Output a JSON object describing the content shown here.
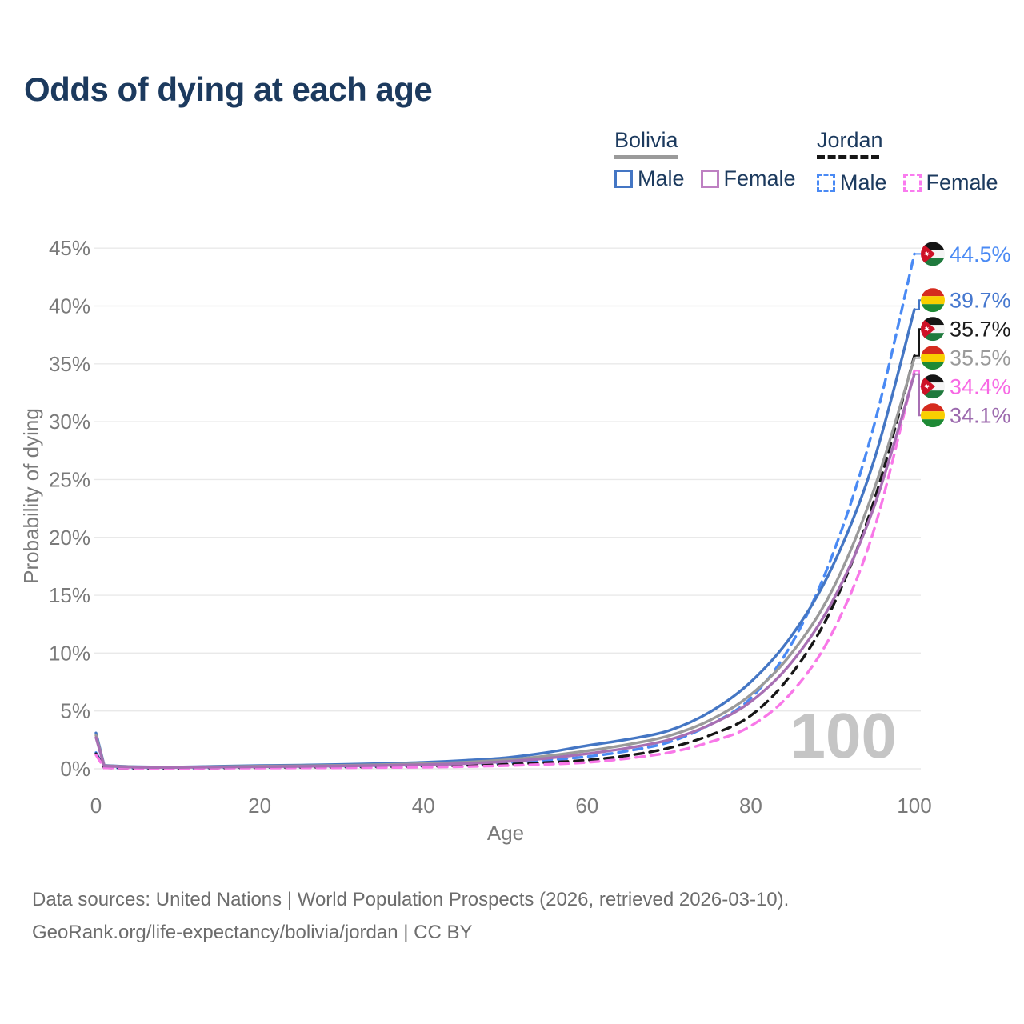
{
  "title": "Odds of dying at each age",
  "legend": {
    "bolivia": {
      "label": "Bolivia",
      "male_label": "Male",
      "female_label": "Female"
    },
    "jordan": {
      "label": "Jordan",
      "male_label": "Male",
      "female_label": "Female"
    }
  },
  "colors": {
    "title": "#1C3A5E",
    "axis_text": "#7A7A7A",
    "grid": "#E9E9E9",
    "watermark": "#C5C5C5",
    "footer_text": "#6D6D6D",
    "bolivia_underline": "#9A9A9A",
    "jordan_underline": "#161616",
    "legend_box_bolivia_male": "#4476C4",
    "legend_box_bolivia_female": "#BE80C2",
    "legend_box_jordan_male": "#4A8AF4",
    "legend_box_jordan_female": "#FA7BEF"
  },
  "watermark": "100",
  "axes": {
    "x": {
      "title": "Age",
      "min": 0,
      "max": 100,
      "ticks": [
        {
          "v": 0,
          "label": "0"
        },
        {
          "v": 20,
          "label": "20"
        },
        {
          "v": 40,
          "label": "40"
        },
        {
          "v": 60,
          "label": "60"
        },
        {
          "v": 80,
          "label": "80"
        },
        {
          "v": 100,
          "label": "100"
        }
      ]
    },
    "y": {
      "title": "Probability of dying",
      "min": 0,
      "max": 45,
      "ticks": [
        {
          "v": 0,
          "label": "0%"
        },
        {
          "v": 5,
          "label": "5%"
        },
        {
          "v": 10,
          "label": "10%"
        },
        {
          "v": 15,
          "label": "15%"
        },
        {
          "v": 20,
          "label": "20%"
        },
        {
          "v": 25,
          "label": "25%"
        },
        {
          "v": 30,
          "label": "30%"
        },
        {
          "v": 35,
          "label": "35%"
        },
        {
          "v": 40,
          "label": "40%"
        },
        {
          "v": 45,
          "label": "45%"
        }
      ]
    }
  },
  "chart_data": {
    "type": "line",
    "x": [
      0,
      1,
      5,
      10,
      15,
      20,
      25,
      30,
      35,
      40,
      45,
      50,
      55,
      60,
      65,
      70,
      75,
      80,
      85,
      90,
      95,
      100
    ],
    "series": [
      {
        "name": "Jordan Male",
        "flag": "jordan",
        "dashed": true,
        "color": "#4A8AF4",
        "label_color": "#4A8AF4",
        "end_label": "44.5%",
        "values": [
          1.4,
          0.1,
          0.06,
          0.06,
          0.09,
          0.13,
          0.15,
          0.17,
          0.21,
          0.27,
          0.36,
          0.52,
          0.74,
          1.05,
          1.55,
          2.3,
          3.8,
          6.1,
          10.8,
          18.5,
          29.5,
          44.5
        ]
      },
      {
        "name": "Bolivia Male",
        "flag": "bolivia",
        "dashed": false,
        "color": "#4476C4",
        "label_color": "#4678CF",
        "end_label": "39.7%",
        "values": [
          3.1,
          0.3,
          0.18,
          0.16,
          0.22,
          0.28,
          0.32,
          0.37,
          0.45,
          0.55,
          0.72,
          0.95,
          1.4,
          2.0,
          2.55,
          3.3,
          4.9,
          7.5,
          11.5,
          17.5,
          26.5,
          39.7
        ]
      },
      {
        "name": "Jordan Both sexes",
        "flag": "jordan",
        "dashed": true,
        "color": "#161616",
        "label_color": "#1A1A1A",
        "end_label": "35.7%",
        "values": [
          1.3,
          0.09,
          0.05,
          0.05,
          0.07,
          0.1,
          0.11,
          0.13,
          0.16,
          0.2,
          0.27,
          0.38,
          0.54,
          0.75,
          1.15,
          1.8,
          2.9,
          4.6,
          8.2,
          14.0,
          23.0,
          35.7
        ]
      },
      {
        "name": "Bolivia Both sexes",
        "flag": "bolivia",
        "dashed": false,
        "color": "#9A9A9A",
        "label_color": "#9A9A9A",
        "end_label": "35.5%",
        "values": [
          2.9,
          0.27,
          0.16,
          0.14,
          0.18,
          0.23,
          0.26,
          0.3,
          0.36,
          0.44,
          0.57,
          0.76,
          1.1,
          1.55,
          2.1,
          2.85,
          4.2,
          6.4,
          10.0,
          15.5,
          24.0,
          35.5
        ]
      },
      {
        "name": "Jordan Female",
        "flag": "jordan",
        "dashed": true,
        "color": "#F878E8",
        "label_color": "#F768E4",
        "end_label": "34.4%",
        "values": [
          1.2,
          0.08,
          0.05,
          0.04,
          0.06,
          0.07,
          0.08,
          0.09,
          0.11,
          0.14,
          0.19,
          0.27,
          0.39,
          0.55,
          0.9,
          1.4,
          2.3,
          3.7,
          6.6,
          11.8,
          20.5,
          34.4
        ]
      },
      {
        "name": "Bolivia Female",
        "flag": "bolivia",
        "dashed": false,
        "color": "#A76FB3",
        "label_color": "#9C6AAE",
        "end_label": "34.1%",
        "values": [
          2.7,
          0.24,
          0.14,
          0.12,
          0.15,
          0.18,
          0.21,
          0.24,
          0.29,
          0.35,
          0.45,
          0.62,
          0.9,
          1.3,
          1.8,
          2.5,
          3.8,
          5.8,
          9.2,
          14.5,
          22.5,
          34.1
        ]
      }
    ],
    "flag_colors": {
      "bolivia": {
        "top": "#D52B1E",
        "middle": "#F9CF00",
        "bottom": "#1E8A35"
      },
      "jordan": {
        "top": "#151515",
        "middle": "#F4F4F4",
        "bottom": "#1F7A3D",
        "triangle": "#CE1126",
        "star": "#FFFFFF"
      }
    }
  },
  "footer": {
    "line1": "Data sources: United Nations | World Population Prospects (2026, retrieved 2026-03-10).",
    "line2": "GeoRank.org/life-expectancy/bolivia/jordan | CC BY"
  }
}
